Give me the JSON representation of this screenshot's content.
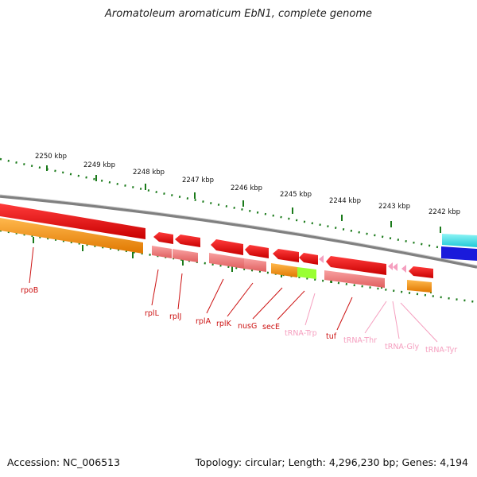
{
  "title": "Aromatoleum aromaticum EbN1, complete genome",
  "footer": {
    "accession": "Accession: NC_006513",
    "summary": "Topology: circular; Length: 4,296,230 bp; Genes: 4,194"
  },
  "ticks": [
    "2250 kbp",
    "2249 kbp",
    "2248 kbp",
    "2247 kbp",
    "2246 kbp",
    "2245 kbp",
    "2244 kbp",
    "2243 kbp",
    "2242 kbp"
  ],
  "genes": [
    "rpoB",
    "rplL",
    "rplJ",
    "rplA",
    "rplK",
    "nusG",
    "secE",
    "tRNA-Trp",
    "tuf",
    "tRNA-Thr",
    "tRNA-Gly",
    "tRNA-Tyr"
  ],
  "colors": {
    "cds_forward": "#e8141a",
    "cds_reverse": "#cc0000",
    "gene_bar": "#f08080",
    "orange": "#ff9900",
    "green": "#99ff33",
    "trna_label": "#f59fbf",
    "gene_label": "#cc1111",
    "cyan": "#33e6e6",
    "blue": "#1a1adb",
    "backbone": "#888888",
    "tick": "#1a7a1a"
  }
}
